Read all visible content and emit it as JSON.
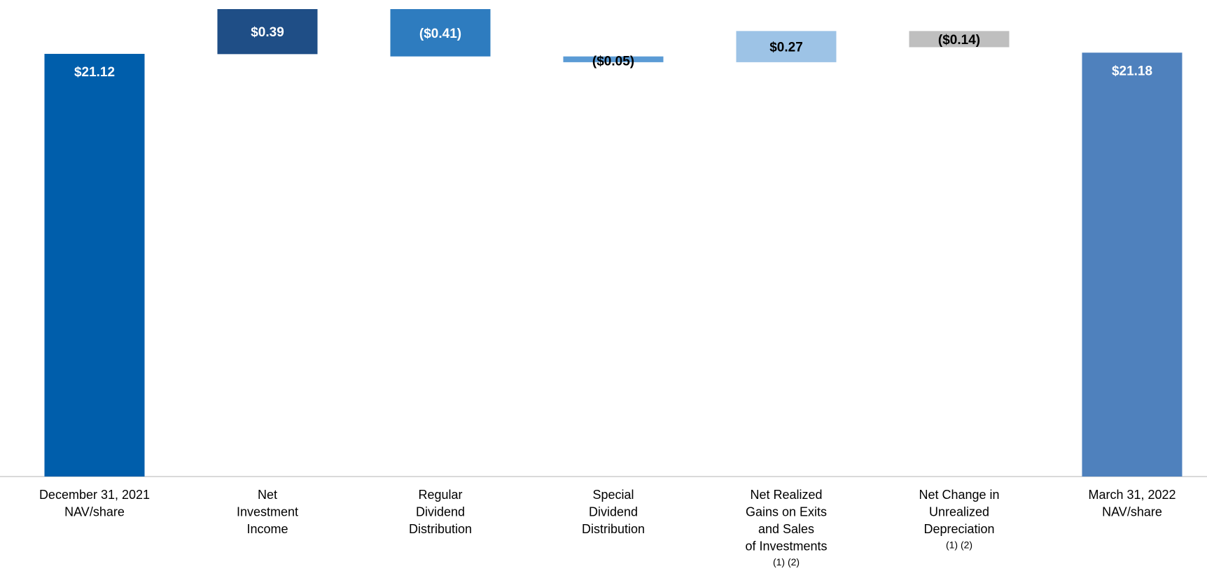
{
  "chart_data": {
    "type": "bar",
    "subtype": "waterfall",
    "title": "",
    "xlabel": "",
    "ylabel": "",
    "grid": false,
    "legend": "none",
    "categories": [
      {
        "lines": [
          "December 31, 2021",
          "NAV/share"
        ],
        "note": ""
      },
      {
        "lines": [
          "Net",
          "Investment",
          "Income"
        ],
        "note": ""
      },
      {
        "lines": [
          "Regular",
          "Dividend",
          "Distribution"
        ],
        "note": ""
      },
      {
        "lines": [
          "Special",
          "Dividend",
          "Distribution"
        ],
        "note": ""
      },
      {
        "lines": [
          "Net Realized",
          "Gains on Exits",
          "and Sales",
          "of Investments"
        ],
        "note": "(1) (2)"
      },
      {
        "lines": [
          "Net Change in",
          "Unrealized",
          "Depreciation"
        ],
        "note": "(1) (2)"
      },
      {
        "lines": [
          "March 31, 2022",
          "NAV/share"
        ],
        "note": ""
      }
    ],
    "values": [
      21.12,
      0.39,
      -0.41,
      -0.05,
      0.27,
      -0.14,
      21.18
    ],
    "labels": [
      "$21.12",
      "$0.39",
      "($0.41)",
      "($0.05)",
      "$0.27",
      "($0.14)",
      "$21.18"
    ],
    "bar_kinds": [
      "total",
      "delta",
      "delta",
      "delta",
      "delta",
      "delta",
      "total"
    ],
    "colors": [
      "#005EAB",
      "#1F4E86",
      "#2E7CBF",
      "#5B9BD5",
      "#9DC3E6",
      "#BFBFBF",
      "#4F81BD"
    ],
    "label_colors": [
      "#FFFFFF",
      "#FFFFFF",
      "#FFFFFF",
      "#000000",
      "#000000",
      "#000000",
      "#FFFFFF"
    ],
    "axis_line_color": "#D9D9D9"
  }
}
